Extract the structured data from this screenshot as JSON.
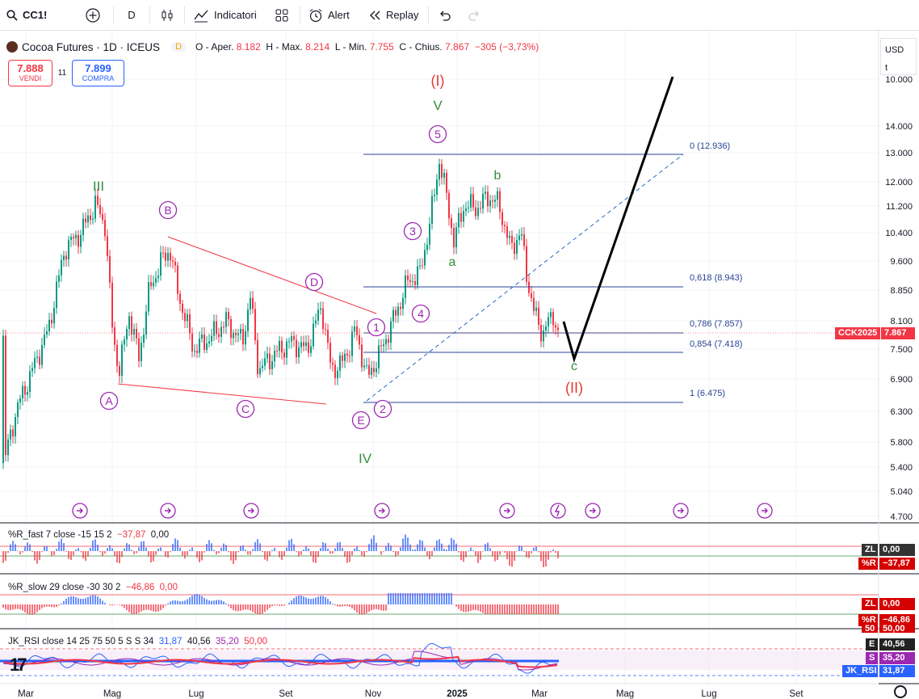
{
  "toolbar": {
    "symbol": "CC1!",
    "interval": "D",
    "indicators": "Indicatori",
    "alert": "Alert",
    "replay": "Replay"
  },
  "header": {
    "title": "Cocoa Futures · 1D · ICEUS",
    "delay_badge": "D",
    "o_label": "O - Aper.",
    "o_value": "8.182",
    "h_label": "H - Max.",
    "h_value": "8.214",
    "l_label": "L - Min.",
    "l_value": "7.755",
    "c_label": "C - Chius.",
    "c_value": "7.867",
    "change": "−305 (−3,73%)"
  },
  "trade": {
    "sell_price": "7.888",
    "sell_label": "VENDI",
    "spread": "11",
    "buy_price": "7.899",
    "buy_label": "COMPRA"
  },
  "currency": {
    "label": "USD",
    "unit": "t"
  },
  "price_axis": [
    "10.000",
    "14.000",
    "13.000",
    "12.000",
    "11.200",
    "10.400",
    "9.600",
    "8.850",
    "8.100",
    "7.500",
    "6.900",
    "6.300",
    "5.800",
    "5.400",
    "5.040",
    "4.700"
  ],
  "time_axis": [
    "Mar",
    "Mag",
    "Lug",
    "Set",
    "Nov",
    "2025",
    "Mar",
    "Mag",
    "Lug",
    "Set"
  ],
  "price_tag": {
    "symbol": "CCK2025",
    "value": "7.867"
  },
  "fib_levels": [
    {
      "label": "0 (12.936)"
    },
    {
      "label": "0,618 (8.943)"
    },
    {
      "label": "0,786 (7.857)"
    },
    {
      "label": "0,854 (7.418)"
    },
    {
      "label": "1 (6.475)"
    }
  ],
  "wave_labels": {
    "III": "III",
    "IV": "IV",
    "V": "V",
    "I_red": "(I)",
    "II_red": "(II)",
    "A": "A",
    "B": "B",
    "C": "C",
    "D": "D",
    "E": "E",
    "w1": "1",
    "w2": "2",
    "w3": "3",
    "w4": "4",
    "w5": "5",
    "a": "a",
    "b": "b",
    "c": "c"
  },
  "indicators": {
    "rfast": {
      "label": "%R_fast 7 close -15 15 2",
      "v1": "−37,87",
      "v2": "0,00",
      "zl": "ZL",
      "zl_val": "0,00",
      "r": "%R",
      "r_val": "−37,87"
    },
    "rslow": {
      "label": "%R_slow 29 close -30 30 2",
      "v1": "−46,86",
      "v2": "0,00",
      "zl": "ZL",
      "zl_val": "0,00",
      "r": "%R",
      "r_val": "−46,86",
      "level": "50",
      "level_val": "50,00"
    },
    "rsi": {
      "label": "JK_RSI close 14 25 75 50 5 S S 34",
      "v1": "31,87",
      "v2": "40,56",
      "v3": "35,20",
      "v4": "50,00",
      "e": "E",
      "e_val": "40,56",
      "s": "S",
      "s_val": "35,20",
      "rsi": "JK_RSI",
      "rsi_val": "31,87"
    }
  },
  "colors": {
    "up": "#089981",
    "down": "#f23645",
    "fib": "#2a4494",
    "wave_purple": "#9c27b0",
    "wave_green": "#388e3c",
    "wave_red": "#e53935"
  }
}
